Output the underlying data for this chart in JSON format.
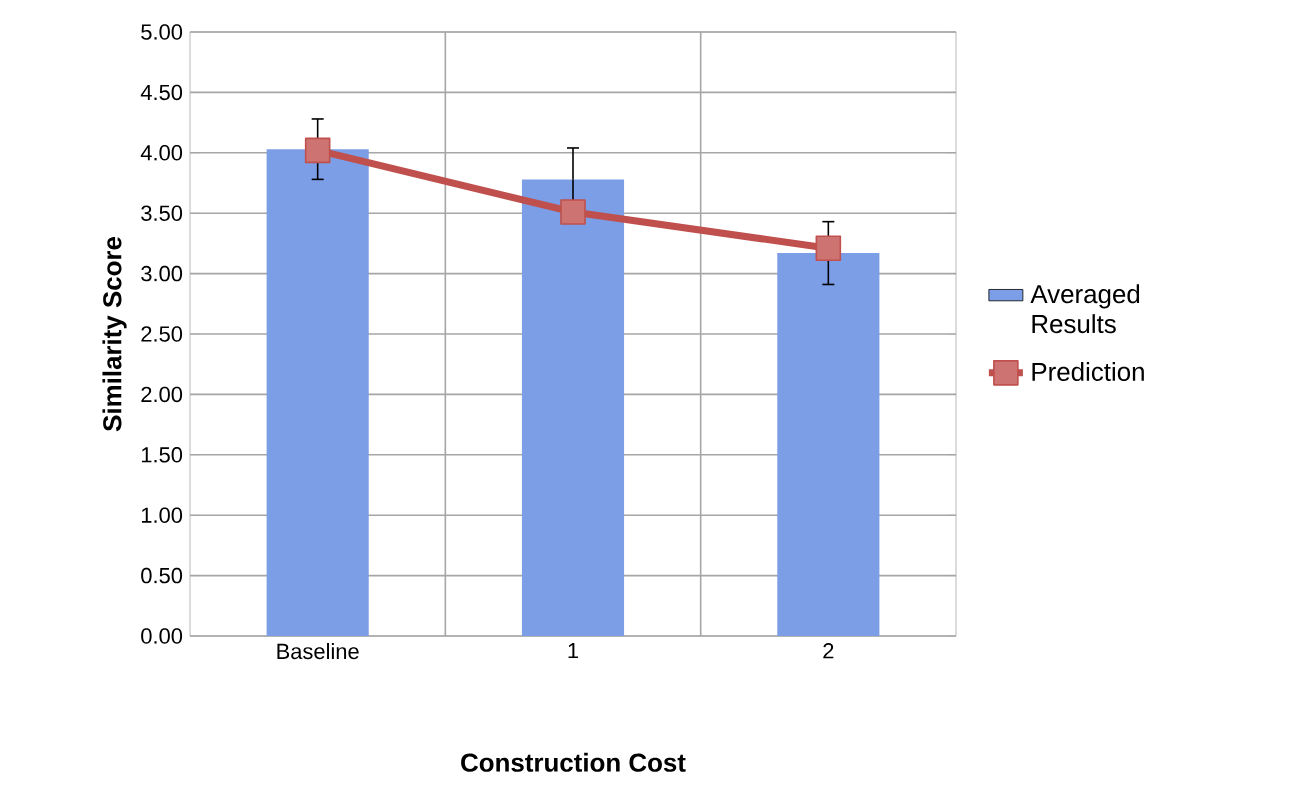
{
  "chart_data": {
    "type": "bar",
    "xlabel": "Construction Cost",
    "ylabel": "Similarity Score",
    "categories": [
      "Baseline",
      "1",
      "2"
    ],
    "series": [
      {
        "name": "Averaged Results",
        "color": "#7b9ee6",
        "values": [
          4.03,
          3.78,
          3.17
        ],
        "errors": [
          0.25,
          0.26,
          0.26
        ]
      },
      {
        "name": "Prediction",
        "type": "line",
        "color": "#c0504d",
        "values": [
          4.02,
          3.51,
          3.21
        ],
        "marker": "square"
      }
    ],
    "ylim": [
      0,
      5
    ],
    "yticks": [
      {
        "value": 0,
        "label": "0.00"
      },
      {
        "value": 0.5,
        "label": "0.50"
      },
      {
        "value": 1,
        "label": "1.00"
      },
      {
        "value": 1.5,
        "label": "1.50"
      },
      {
        "value": 2,
        "label": "2.00"
      },
      {
        "value": 2.5,
        "label": "2.50"
      },
      {
        "value": 3,
        "label": "3.00"
      },
      {
        "value": 3.5,
        "label": "3.50"
      },
      {
        "value": 4,
        "label": "4.00"
      },
      {
        "value": 4.5,
        "label": "4.50"
      },
      {
        "value": 5,
        "label": "5.00"
      }
    ],
    "grid": true,
    "legend": "right"
  }
}
